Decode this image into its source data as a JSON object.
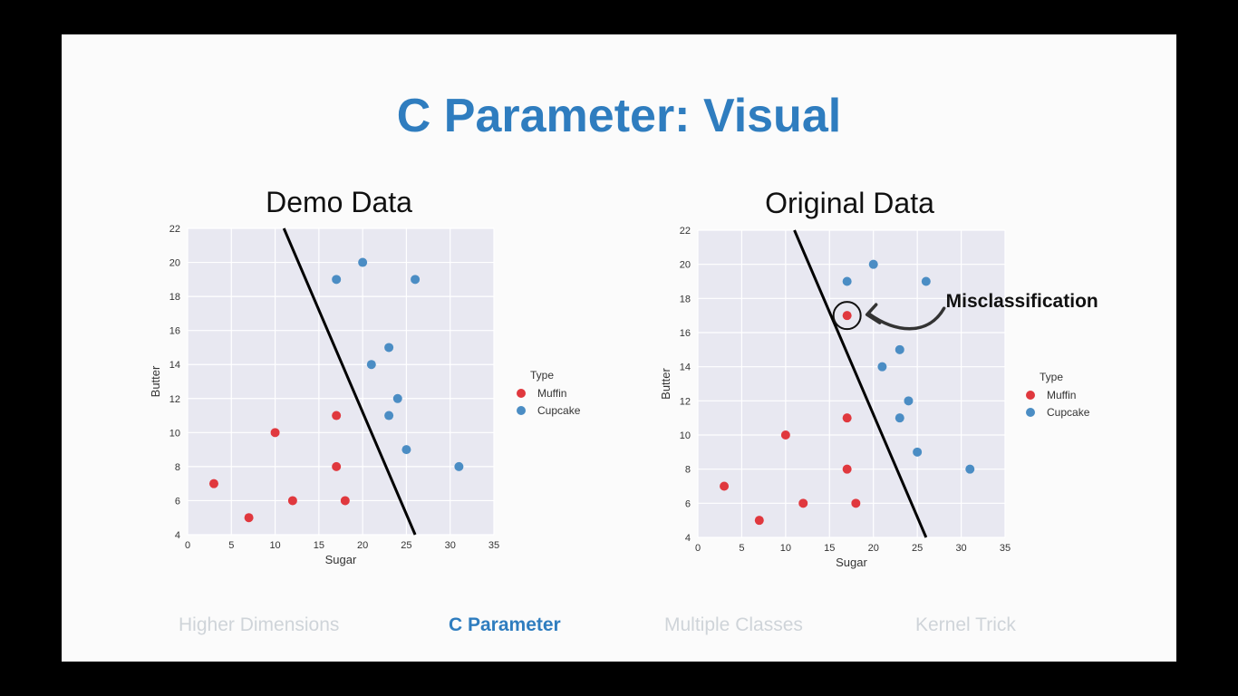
{
  "slide": {
    "title": "C Parameter: Visual",
    "nav": [
      {
        "label": "Higher Dimensions",
        "active": false
      },
      {
        "label": "C Parameter",
        "active": true
      },
      {
        "label": "Multiple Classes",
        "active": false
      },
      {
        "label": "Kernel Trick",
        "active": false
      }
    ],
    "colors": {
      "title": "#2f7dbf",
      "muffin": "#e0383e",
      "cupcake": "#4b8dc4",
      "nav_inactive": "#cfd4d9"
    }
  },
  "chart_data": [
    {
      "type": "scatter",
      "title": "Demo Data",
      "xlabel": "Sugar",
      "ylabel": "Butter",
      "xlim": [
        0,
        35
      ],
      "ylim": [
        4,
        22
      ],
      "xticks": [
        0,
        5,
        10,
        15,
        20,
        25,
        30,
        35
      ],
      "yticks": [
        4,
        6,
        8,
        10,
        12,
        14,
        16,
        18,
        20,
        22
      ],
      "grid": true,
      "legend": {
        "title": "Type",
        "position": "right",
        "entries": [
          "Muffin",
          "Cupcake"
        ]
      },
      "series": [
        {
          "name": "Muffin",
          "color": "#e0383e",
          "points": [
            [
              3,
              7
            ],
            [
              7,
              5
            ],
            [
              10,
              10
            ],
            [
              12,
              6
            ],
            [
              17,
              11
            ],
            [
              17,
              8
            ],
            [
              18,
              6
            ]
          ]
        },
        {
          "name": "Cupcake",
          "color": "#4b8dc4",
          "points": [
            [
              17,
              19
            ],
            [
              20,
              20
            ],
            [
              26,
              19
            ],
            [
              21,
              14
            ],
            [
              23,
              15
            ],
            [
              24,
              12
            ],
            [
              23,
              11
            ],
            [
              25,
              9
            ],
            [
              31,
              8
            ]
          ]
        }
      ],
      "decision_line": [
        [
          11,
          22
        ],
        [
          26,
          4
        ]
      ]
    },
    {
      "type": "scatter",
      "title": "Original Data",
      "xlabel": "Sugar",
      "ylabel": "Butter",
      "xlim": [
        0,
        35
      ],
      "ylim": [
        4,
        22
      ],
      "xticks": [
        0,
        5,
        10,
        15,
        20,
        25,
        30,
        35
      ],
      "yticks": [
        4,
        6,
        8,
        10,
        12,
        14,
        16,
        18,
        20,
        22
      ],
      "grid": true,
      "legend": {
        "title": "Type",
        "position": "right",
        "entries": [
          "Muffin",
          "Cupcake"
        ]
      },
      "series": [
        {
          "name": "Muffin",
          "color": "#e0383e",
          "points": [
            [
              3,
              7
            ],
            [
              7,
              5
            ],
            [
              10,
              10
            ],
            [
              12,
              6
            ],
            [
              17,
              11
            ],
            [
              17,
              8
            ],
            [
              18,
              6
            ],
            [
              17,
              17
            ]
          ]
        },
        {
          "name": "Cupcake",
          "color": "#4b8dc4",
          "points": [
            [
              17,
              19
            ],
            [
              20,
              20
            ],
            [
              26,
              19
            ],
            [
              21,
              14
            ],
            [
              23,
              15
            ],
            [
              24,
              12
            ],
            [
              23,
              11
            ],
            [
              25,
              9
            ],
            [
              31,
              8
            ]
          ]
        }
      ],
      "decision_line": [
        [
          11,
          22
        ],
        [
          26,
          4
        ]
      ],
      "annotation": {
        "text": "Misclassification",
        "point": [
          17,
          17
        ]
      }
    }
  ]
}
